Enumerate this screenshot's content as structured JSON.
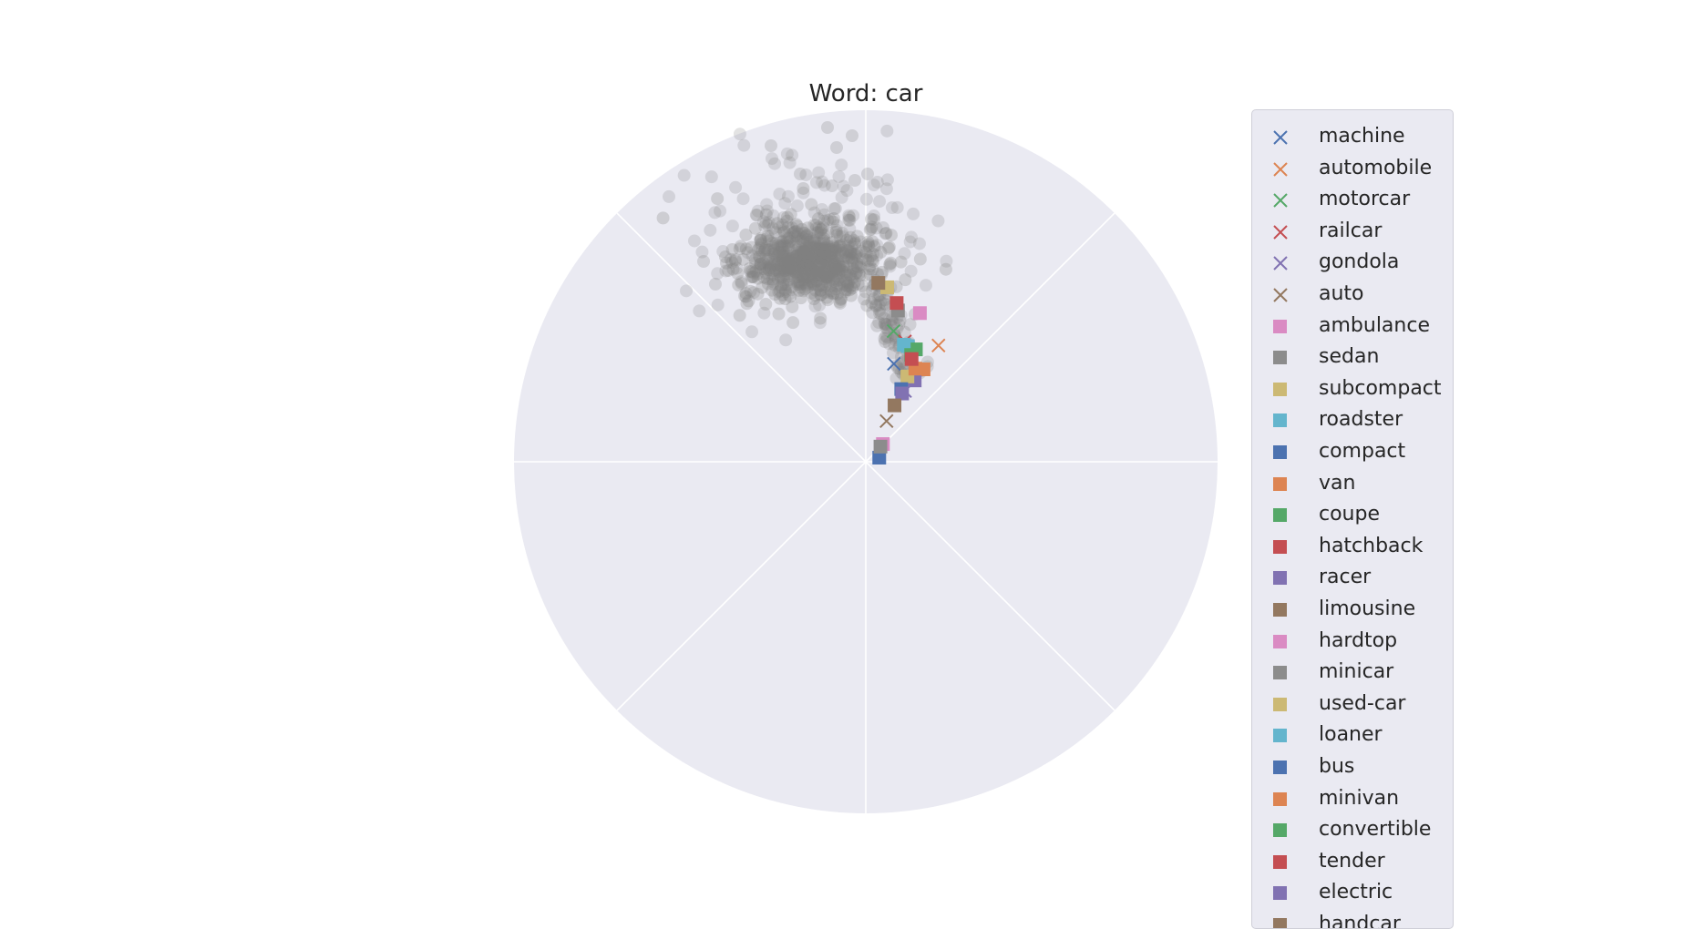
{
  "chart_data": {
    "type": "scatter",
    "projection": "polar",
    "title": "Word: car",
    "grid": true,
    "radial_tick_labels": false,
    "angular_tick_labels": false,
    "legend_placement": "right, outside plot",
    "background_color": "#eaeaf2",
    "background_points": {
      "color": "#808080",
      "description_cluster": {
        "theta_deg": [
          95,
          130
        ],
        "r": [
          0.35,
          0.97
        ]
      }
    },
    "series": [
      {
        "name": "machine",
        "marker": "x",
        "color": "#4c72b0",
        "points": [
          [
            0.29,
            74
          ]
        ]
      },
      {
        "name": "automobile",
        "marker": "x",
        "color": "#dd8452",
        "points": [
          [
            0.39,
            58
          ]
        ]
      },
      {
        "name": "motorcar",
        "marker": "x",
        "color": "#55a868",
        "points": [
          [
            0.38,
            78
          ]
        ]
      },
      {
        "name": "railcar",
        "marker": "x",
        "color": "#c44e52",
        "points": [
          [
            0.36,
            72
          ]
        ]
      },
      {
        "name": "gondola",
        "marker": "x",
        "color": "#8172b2",
        "points": [
          [
            0.23,
            61
          ]
        ]
      },
      {
        "name": "auto",
        "marker": "x",
        "color": "#937860",
        "points": [
          [
            0.13,
            63
          ]
        ]
      },
      {
        "name": "ambulance",
        "marker": "square",
        "color": "#da8bc3",
        "points": [
          [
            0.45,
            70
          ]
        ]
      },
      {
        "name": "sedan",
        "marker": "square",
        "color": "#8c8c8c",
        "points": [
          [
            0.44,
            78
          ]
        ]
      },
      {
        "name": "subcompact",
        "marker": "square",
        "color": "#ccb974",
        "points": [
          [
            0.5,
            83
          ]
        ]
      },
      {
        "name": "roadster",
        "marker": "square",
        "color": "#64b5cd",
        "points": [
          [
            0.35,
            70
          ]
        ]
      },
      {
        "name": "compact",
        "marker": "square",
        "color": "#4c72b0",
        "points": [
          [
            0.04,
            17
          ]
        ]
      },
      {
        "name": "van",
        "marker": "square",
        "color": "#dd8452",
        "points": [
          [
            0.31,
            58
          ]
        ]
      },
      {
        "name": "coupe",
        "marker": "square",
        "color": "#55a868",
        "points": [
          [
            0.35,
            66
          ]
        ]
      },
      {
        "name": "hatchback",
        "marker": "square",
        "color": "#c44e52",
        "points": [
          [
            0.46,
            79
          ]
        ]
      },
      {
        "name": "racer",
        "marker": "square",
        "color": "#8172b2",
        "points": [
          [
            0.27,
            59
          ]
        ]
      },
      {
        "name": "limousine",
        "marker": "square",
        "color": "#937860",
        "points": [
          [
            0.51,
            86
          ]
        ]
      },
      {
        "name": "hardtop",
        "marker": "square",
        "color": "#da8bc3",
        "points": [
          [
            0.07,
            46
          ]
        ]
      },
      {
        "name": "minicar",
        "marker": "square",
        "color": "#8c8c8c",
        "points": [
          [
            0.06,
            46
          ]
        ]
      },
      {
        "name": "used-car",
        "marker": "square",
        "color": "#ccb974",
        "points": [
          [
            0.27,
            64
          ]
        ]
      },
      {
        "name": "loaner",
        "marker": "square",
        "color": "#64b5cd",
        "points": [
          [
            0.35,
            72
          ]
        ]
      },
      {
        "name": "bus",
        "marker": "square",
        "color": "#4c72b0",
        "points": [
          [
            0.23,
            64
          ]
        ]
      },
      {
        "name": "minivan",
        "marker": "square",
        "color": "#dd8452",
        "points": [
          [
            0.3,
            62
          ]
        ]
      },
      {
        "name": "convertible",
        "marker": "square",
        "color": "#55a868",
        "points": [
          [
            0.33,
            67
          ]
        ]
      },
      {
        "name": "tender",
        "marker": "square",
        "color": "#c44e52",
        "points": [
          [
            0.32,
            66
          ]
        ]
      },
      {
        "name": "electric",
        "marker": "square",
        "color": "#8172b2",
        "points": [
          [
            0.22,
            62
          ]
        ]
      },
      {
        "name": "handcar",
        "marker": "square",
        "color": "#937860",
        "points": [
          [
            0.18,
            63
          ]
        ]
      }
    ]
  }
}
